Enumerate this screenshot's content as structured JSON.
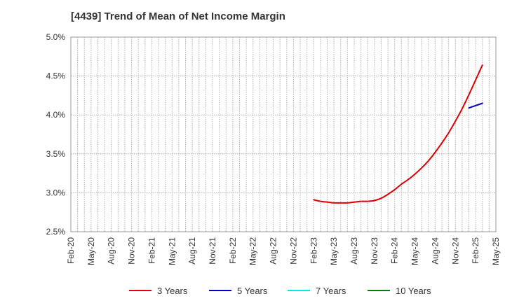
{
  "chart_data": {
    "type": "line",
    "title": "[4439]  Trend of Mean of Net Income Margin",
    "xlabel": "",
    "ylabel": "",
    "ylim": [
      2.5,
      5.0
    ],
    "yticks": [
      "2.5%",
      "3.0%",
      "3.5%",
      "4.0%",
      "4.5%",
      "5.0%"
    ],
    "ytick_values": [
      2.5,
      3.0,
      3.5,
      4.0,
      4.5,
      5.0
    ],
    "categories": [
      "Feb-20",
      "May-20",
      "Aug-20",
      "Nov-20",
      "Feb-21",
      "May-21",
      "Aug-21",
      "Nov-21",
      "Feb-22",
      "May-22",
      "Aug-22",
      "Nov-22",
      "Feb-23",
      "May-23",
      "Aug-23",
      "Nov-23",
      "Feb-24",
      "May-24",
      "Aug-24",
      "Nov-24",
      "Feb-25",
      "May-25"
    ],
    "grid": true,
    "legend_position": "bottom",
    "series": [
      {
        "name": "3 Years",
        "color": "#e00000",
        "points": [
          [
            "Feb-23",
            2.91
          ],
          [
            "Mar-23",
            2.89
          ],
          [
            "Apr-23",
            2.88
          ],
          [
            "May-23",
            2.87
          ],
          [
            "Jun-23",
            2.87
          ],
          [
            "Jul-23",
            2.87
          ],
          [
            "Aug-23",
            2.88
          ],
          [
            "Sep-23",
            2.89
          ],
          [
            "Oct-23",
            2.89
          ],
          [
            "Nov-23",
            2.9
          ],
          [
            "Dec-23",
            2.93
          ],
          [
            "Jan-24",
            2.98
          ],
          [
            "Feb-24",
            3.04
          ],
          [
            "Mar-24",
            3.11
          ],
          [
            "Apr-24",
            3.17
          ],
          [
            "May-24",
            3.24
          ],
          [
            "Jun-24",
            3.32
          ],
          [
            "Jul-24",
            3.41
          ],
          [
            "Aug-24",
            3.52
          ],
          [
            "Sep-24",
            3.64
          ],
          [
            "Oct-24",
            3.77
          ],
          [
            "Nov-24",
            3.92
          ],
          [
            "Dec-24",
            4.08
          ],
          [
            "Jan-25",
            4.26
          ],
          [
            "Feb-25",
            4.45
          ],
          [
            "Mar-25",
            4.64
          ]
        ]
      },
      {
        "name": "5 Years",
        "color": "#0000cc",
        "points": [
          [
            "Jan-25",
            4.09
          ],
          [
            "Feb-25",
            4.12
          ],
          [
            "Mar-25",
            4.15
          ]
        ]
      },
      {
        "name": "7 Years",
        "color": "#00e5ee",
        "points": []
      },
      {
        "name": "10 Years",
        "color": "#008000",
        "points": []
      }
    ]
  }
}
